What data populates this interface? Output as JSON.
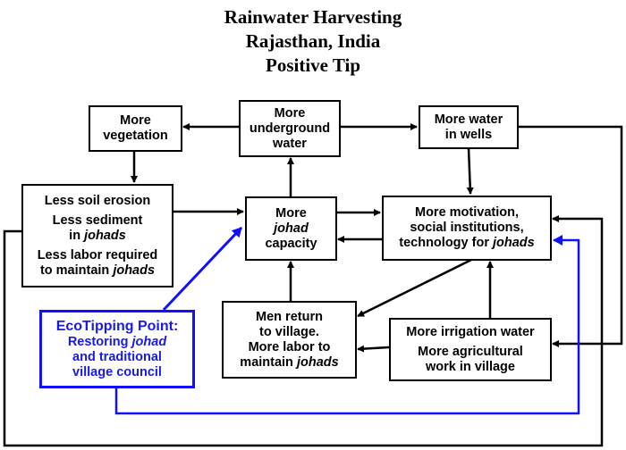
{
  "title": {
    "line1": "Rainwater Harvesting",
    "line2": "Rajasthan, India",
    "line3": "Positive Tip"
  },
  "nodes": {
    "vegetation": {
      "l1": "More",
      "l2": "vegetation"
    },
    "underground": {
      "l1": "More",
      "l2": "underground",
      "l3": "water"
    },
    "wells": {
      "l1": "More water",
      "l2": "in wells"
    },
    "soil": {
      "a": "Less soil erosion",
      "b1": "Less sediment",
      "b2": "in ",
      "b2i": "johads",
      "c1": "Less labor required",
      "c2": "to maintain ",
      "c2i": "johads"
    },
    "capacity": {
      "l1": "More",
      "l2i": "johad",
      "l3": "capacity"
    },
    "motivation": {
      "l1": "More motivation,",
      "l2": "social institutions,",
      "l3": "technology for ",
      "l3i": "johads"
    },
    "men": {
      "l1": "Men return",
      "l2": "to village.",
      "l3": "More labor to",
      "l4": "maintain ",
      "l4i": "johads"
    },
    "irrigation": {
      "a": "More irrigation water",
      "b1": "More agricultural",
      "b2": "work in village"
    },
    "ecotip": {
      "head": "EcoTipping Point:",
      "l1": "Restoring ",
      "l1i": "johad",
      "l2": "and traditional",
      "l3": "village council"
    }
  },
  "colors": {
    "arrow": "#000000",
    "tipping_point": "#1010ff"
  }
}
